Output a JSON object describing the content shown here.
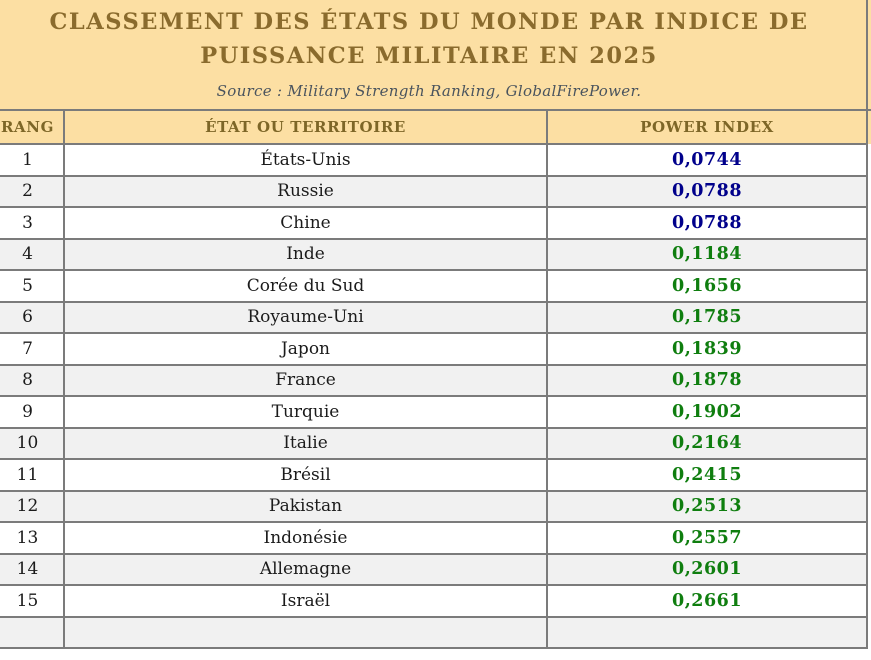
{
  "title": {
    "line1": "CLASSEMENT DES ÉTATS DU MONDE PAR INDICE DE",
    "line2": "PUISSANCE MILITAIRE EN 2025",
    "source": "Source : Military Strength Ranking, GlobalFirePower."
  },
  "table": {
    "columns": [
      "RANG",
      "ÉTAT OU TERRITOIRE",
      "POWER INDEX"
    ],
    "rows": [
      {
        "rank": "1",
        "state": "États-Unis",
        "index": "0,0744",
        "index_color": "#00008b"
      },
      {
        "rank": "2",
        "state": "Russie",
        "index": "0,0788",
        "index_color": "#00008b"
      },
      {
        "rank": "3",
        "state": "Chine",
        "index": "0,0788",
        "index_color": "#00008b"
      },
      {
        "rank": "4",
        "state": "Inde",
        "index": "0,1184",
        "index_color": "#0f7e0f"
      },
      {
        "rank": "5",
        "state": "Corée du Sud",
        "index": "0,1656",
        "index_color": "#0f7e0f"
      },
      {
        "rank": "6",
        "state": "Royaume-Uni",
        "index": "0,1785",
        "index_color": "#0f7e0f"
      },
      {
        "rank": "7",
        "state": "Japon",
        "index": "0,1839",
        "index_color": "#0f7e0f"
      },
      {
        "rank": "8",
        "state": "France",
        "index": "0,1878",
        "index_color": "#0f7e0f"
      },
      {
        "rank": "9",
        "state": "Turquie",
        "index": "0,1902",
        "index_color": "#0f7e0f"
      },
      {
        "rank": "10",
        "state": "Italie",
        "index": "0,2164",
        "index_color": "#0f7e0f"
      },
      {
        "rank": "11",
        "state": "Brésil",
        "index": "0,2415",
        "index_color": "#0f7e0f"
      },
      {
        "rank": "12",
        "state": "Pakistan",
        "index": "0,2513",
        "index_color": "#0f7e0f"
      },
      {
        "rank": "13",
        "state": "Indonésie",
        "index": "0,2557",
        "index_color": "#0f7e0f"
      },
      {
        "rank": "14",
        "state": "Allemagne",
        "index": "0,2601",
        "index_color": "#0f7e0f"
      },
      {
        "rank": "15",
        "state": "Israël",
        "index": "0,2661",
        "index_color": "#0f7e0f"
      }
    ]
  },
  "colors": {
    "panel_bg": "#fcdfa3",
    "title_text": "#8a6b2d",
    "header_text": "#7d6627",
    "source_text": "#4a545e",
    "border": "#7b7b7b",
    "row_alt_bg": "#f1f1f1",
    "index_top3": "#00008b",
    "index_rest": "#0f7e0f"
  }
}
